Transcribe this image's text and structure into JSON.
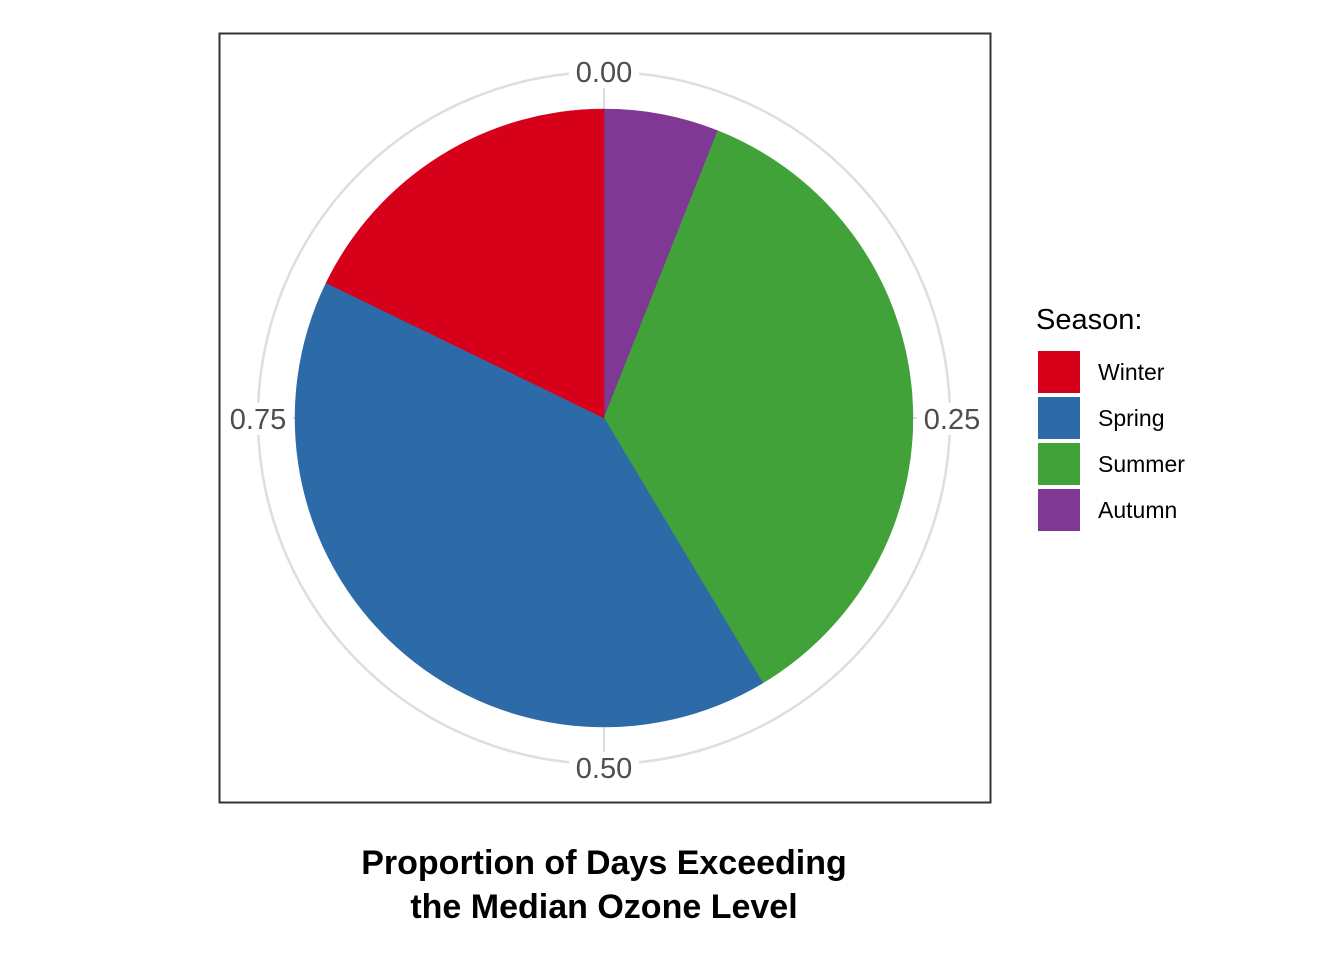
{
  "chart_data": {
    "type": "pie",
    "title_lines": [
      "Proportion of Days Exceeding",
      "the Median Ozone Level"
    ],
    "legend_title": "Season:",
    "legend_position": "right",
    "theta_ticks": [
      {
        "value": 0.0,
        "label": "0.00"
      },
      {
        "value": 0.25,
        "label": "0.25"
      },
      {
        "value": 0.5,
        "label": "0.50"
      },
      {
        "value": 0.75,
        "label": "0.75"
      }
    ],
    "slices": [
      {
        "name": "Autumn",
        "value": 0.06,
        "color": "#7f3893"
      },
      {
        "name": "Summer",
        "value": 0.354,
        "color": "#41a23a"
      },
      {
        "name": "Spring",
        "value": 0.408,
        "color": "#2d6aa8"
      },
      {
        "name": "Winter",
        "value": 0.178,
        "color": "#d7001a"
      }
    ],
    "legend_order": [
      "Winter",
      "Spring",
      "Summer",
      "Autumn"
    ]
  }
}
